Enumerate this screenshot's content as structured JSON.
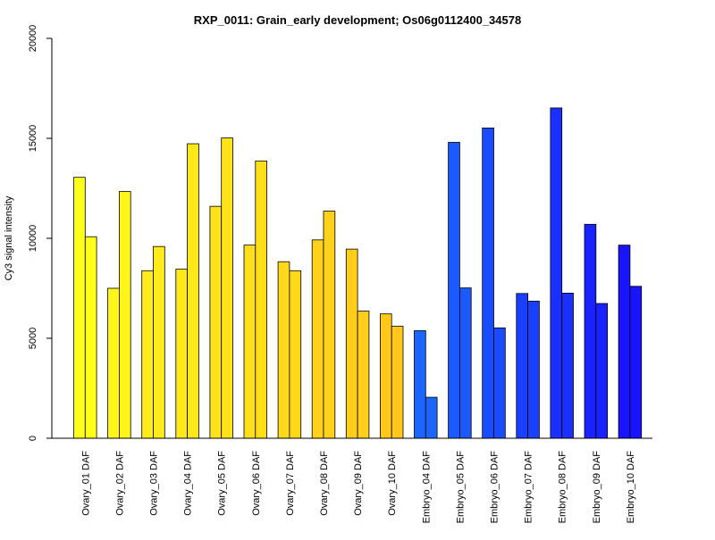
{
  "chart_data": {
    "type": "bar",
    "title": "RXP_0011: Grain_early development; Os06g0112400_34578",
    "xlabel": "",
    "ylabel": "Cy3 signal intensity",
    "ylim": [
      0,
      20000
    ],
    "yticks": [
      0,
      5000,
      10000,
      15000,
      20000
    ],
    "grid": false,
    "legend": "none",
    "categories": [
      "Ovary_01 DAF",
      "Ovary_02 DAF",
      "Ovary_03 DAF",
      "Ovary_04 DAF",
      "Ovary_05 DAF",
      "Ovary_06 DAF",
      "Ovary_07 DAF",
      "Ovary_08 DAF",
      "Ovary_09 DAF",
      "Ovary_10 DAF",
      "Embryo_04 DAF",
      "Embryo_05 DAF",
      "Embryo_06 DAF",
      "Embryo_07 DAF",
      "Embryo_08 DAF",
      "Embryo_09 DAF",
      "Embryo_10 DAF"
    ],
    "series": [
      {
        "values": [
          13050,
          7500,
          8380,
          8460,
          11600,
          9660,
          8830,
          9920,
          9460,
          6220,
          5380,
          14800,
          15520,
          7240,
          16520,
          10700,
          9660
        ]
      },
      {
        "values": [
          10080,
          12340,
          9590,
          14730,
          15020,
          13870,
          8380,
          11360,
          6360,
          5600,
          2050,
          7520,
          5520,
          6860,
          7260,
          6740,
          7600
        ]
      }
    ],
    "colors": [
      "#ffff1a",
      "#fff51a",
      "#ffec1a",
      "#ffe81a",
      "#ffe31a",
      "#ffde1a",
      "#ffd81a",
      "#ffd11a",
      "#ffcd1a",
      "#ffc81a",
      "#1a66ff",
      "#1a5aff",
      "#1a4cff",
      "#1a40ff",
      "#1a30ff",
      "#1a22ff",
      "#1a14ff"
    ]
  }
}
